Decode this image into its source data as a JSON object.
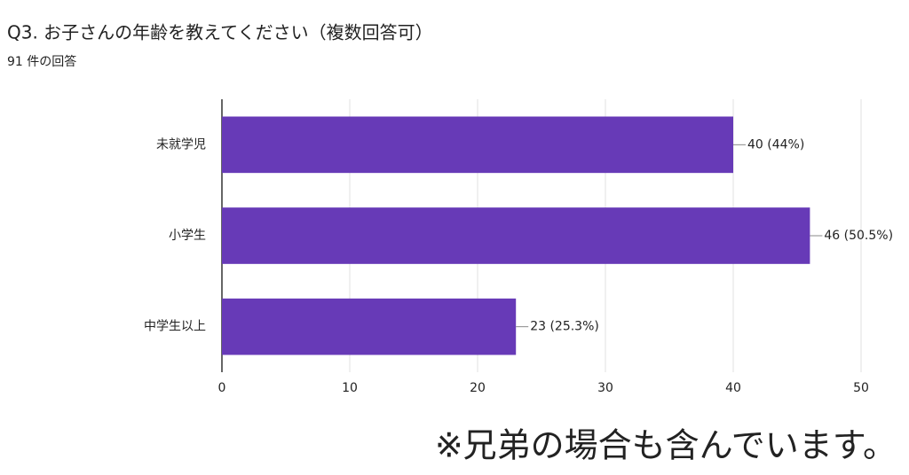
{
  "chart_data": {
    "type": "hbar",
    "title": "Q3. お子さんの年齢を教えてください（複数回答可）",
    "subtitle": "91 件の回答",
    "categories": [
      "未就学児",
      "小学生",
      "中学生以上"
    ],
    "values": [
      40,
      46,
      23
    ],
    "value_labels": [
      "40 (44%)",
      "46 (50.5%)",
      "23 (25.3%)"
    ],
    "color": "#673ab7",
    "xlim": [
      0,
      50
    ],
    "xticks": [
      0,
      10,
      20,
      30,
      40,
      50
    ],
    "grid": true,
    "annotation": "※兄弟の場合も含んでいます。"
  }
}
